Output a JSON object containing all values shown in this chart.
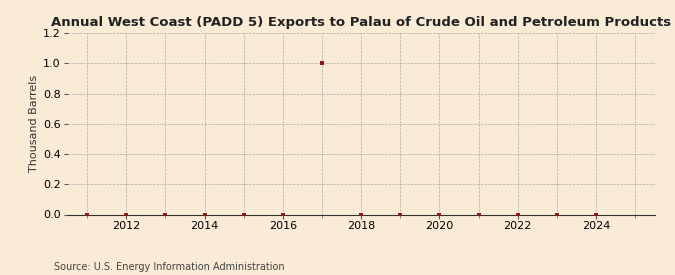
{
  "title": "Annual West Coast (PADD 5) Exports to Palau of Crude Oil and Petroleum Products",
  "ylabel": "Thousand Barrels",
  "source": "Source: U.S. Energy Information Administration",
  "background_color": "#faebd7",
  "dot_color": "#8b1a1a",
  "xlim": [
    2010.5,
    2025.5
  ],
  "ylim": [
    0.0,
    1.2
  ],
  "yticks": [
    0.0,
    0.2,
    0.4,
    0.6,
    0.8,
    1.0,
    1.2
  ],
  "xticks": [
    2012,
    2014,
    2016,
    2018,
    2020,
    2022,
    2024
  ],
  "data_years": [
    2011,
    2012,
    2013,
    2014,
    2015,
    2016,
    2017,
    2018,
    2019,
    2020,
    2021,
    2022,
    2023,
    2024
  ],
  "data_values": [
    0.0,
    0.0,
    0.0,
    0.0,
    0.0,
    0.0,
    1.0,
    0.0,
    0.0,
    0.0,
    0.0,
    0.0,
    0.0,
    0.0
  ],
  "title_fontsize": 9.5,
  "ylabel_fontsize": 8,
  "tick_fontsize": 8,
  "source_fontsize": 7
}
